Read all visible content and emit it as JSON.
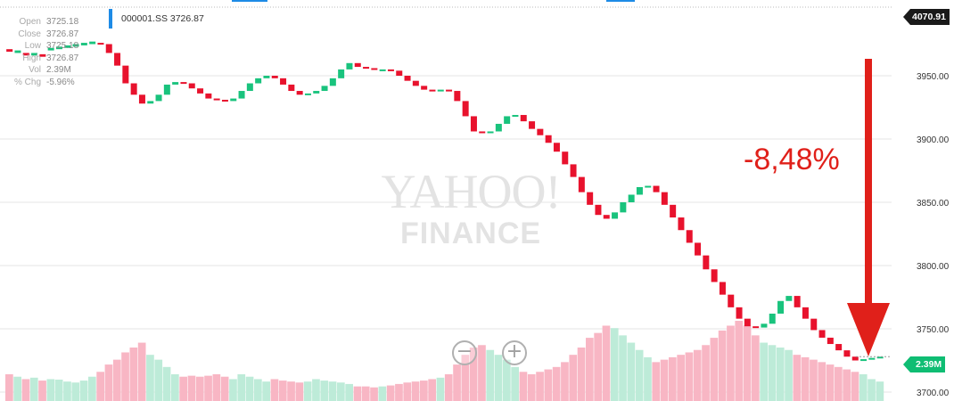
{
  "symbol": {
    "label": "000001.SS 3726.87"
  },
  "ohlc": [
    {
      "key": "Open",
      "value": "3725.18"
    },
    {
      "key": "Close",
      "value": "3726.87"
    },
    {
      "key": "Low",
      "value": "3725.18"
    },
    {
      "key": "High",
      "value": "3726.87"
    },
    {
      "key": "Vol",
      "value": "2.39M"
    },
    {
      "key": "% Chg",
      "value": "-5.96%"
    }
  ],
  "last_price_tag": "4070.91",
  "volume_tag": "2.39M",
  "annotation": "-8,48%",
  "watermark": {
    "brand": "YAHOO!",
    "sub": "FINANCE"
  },
  "zoom": {
    "out_icon": "minus-circle-icon",
    "in_icon": "plus-circle-icon",
    "out_glyph": "−",
    "in_glyph": "+"
  },
  "colors": {
    "up": "#19c37d",
    "down": "#e8122d",
    "vol_up": "#bdebd8",
    "vol_down": "#f8b6c4",
    "arrow": "#e0201a",
    "grid": "#e6e6e6",
    "accent": "#1e8be6"
  },
  "chart_data": {
    "type": "candlestick",
    "ylim": [
      3700,
      4000
    ],
    "yticks": [
      3700,
      3750,
      3800,
      3850,
      3900,
      3950
    ],
    "ytick_labels": [
      "3700.00",
      "3750.00",
      "3800.00",
      "3850.00",
      "3900.00",
      "3950.00"
    ],
    "grid": true,
    "candles": [
      {
        "o": 3971,
        "c": 3969,
        "v": 0.55
      },
      {
        "o": 3968,
        "c": 3970,
        "v": 0.5
      },
      {
        "o": 3968,
        "c": 3966,
        "v": 0.45
      },
      {
        "o": 3966,
        "c": 3968,
        "v": 0.48
      },
      {
        "o": 3967,
        "c": 3965,
        "v": 0.42
      },
      {
        "o": 3970,
        "c": 3972,
        "v": 0.45
      },
      {
        "o": 3971,
        "c": 3973,
        "v": 0.44
      },
      {
        "o": 3972,
        "c": 3974,
        "v": 0.4
      },
      {
        "o": 3973,
        "c": 3975,
        "v": 0.38
      },
      {
        "o": 3974,
        "c": 3976,
        "v": 0.42
      },
      {
        "o": 3975,
        "c": 3977,
        "v": 0.5
      },
      {
        "o": 3976,
        "c": 3975,
        "v": 0.6
      },
      {
        "o": 3975,
        "c": 3968,
        "v": 0.75
      },
      {
        "o": 3968,
        "c": 3958,
        "v": 0.85
      },
      {
        "o": 3958,
        "c": 3944,
        "v": 1.0
      },
      {
        "o": 3944,
        "c": 3935,
        "v": 1.1
      },
      {
        "o": 3935,
        "c": 3928,
        "v": 1.2
      },
      {
        "o": 3928,
        "c": 3930,
        "v": 0.95
      },
      {
        "o": 3930,
        "c": 3935,
        "v": 0.85
      },
      {
        "o": 3935,
        "c": 3943,
        "v": 0.7
      },
      {
        "o": 3943,
        "c": 3945,
        "v": 0.55
      },
      {
        "o": 3945,
        "c": 3944,
        "v": 0.5
      },
      {
        "o": 3944,
        "c": 3940,
        "v": 0.52
      },
      {
        "o": 3940,
        "c": 3936,
        "v": 0.5
      },
      {
        "o": 3936,
        "c": 3932,
        "v": 0.52
      },
      {
        "o": 3932,
        "c": 3931,
        "v": 0.55
      },
      {
        "o": 3931,
        "c": 3930,
        "v": 0.5
      },
      {
        "o": 3930,
        "c": 3932,
        "v": 0.45
      },
      {
        "o": 3932,
        "c": 3938,
        "v": 0.55
      },
      {
        "o": 3938,
        "c": 3944,
        "v": 0.5
      },
      {
        "o": 3944,
        "c": 3948,
        "v": 0.45
      },
      {
        "o": 3948,
        "c": 3950,
        "v": 0.4
      },
      {
        "o": 3950,
        "c": 3948,
        "v": 0.45
      },
      {
        "o": 3948,
        "c": 3943,
        "v": 0.42
      },
      {
        "o": 3943,
        "c": 3938,
        "v": 0.4
      },
      {
        "o": 3938,
        "c": 3935,
        "v": 0.38
      },
      {
        "o": 3935,
        "c": 3936,
        "v": 0.4
      },
      {
        "o": 3936,
        "c": 3938,
        "v": 0.45
      },
      {
        "o": 3938,
        "c": 3942,
        "v": 0.42
      },
      {
        "o": 3942,
        "c": 3948,
        "v": 0.4
      },
      {
        "o": 3948,
        "c": 3955,
        "v": 0.38
      },
      {
        "o": 3955,
        "c": 3960,
        "v": 0.35
      },
      {
        "o": 3960,
        "c": 3957,
        "v": 0.3
      },
      {
        "o": 3957,
        "c": 3956,
        "v": 0.3
      },
      {
        "o": 3956,
        "c": 3955,
        "v": 0.28
      },
      {
        "o": 3955,
        "c": 3955,
        "v": 0.3
      },
      {
        "o": 3955,
        "c": 3954,
        "v": 0.32
      },
      {
        "o": 3954,
        "c": 3950,
        "v": 0.35
      },
      {
        "o": 3950,
        "c": 3946,
        "v": 0.38
      },
      {
        "o": 3946,
        "c": 3942,
        "v": 0.4
      },
      {
        "o": 3942,
        "c": 3939,
        "v": 0.42
      },
      {
        "o": 3939,
        "c": 3938,
        "v": 0.45
      },
      {
        "o": 3938,
        "c": 3939,
        "v": 0.48
      },
      {
        "o": 3939,
        "c": 3938,
        "v": 0.55
      },
      {
        "o": 3938,
        "c": 3930,
        "v": 0.75
      },
      {
        "o": 3930,
        "c": 3918,
        "v": 0.95
      },
      {
        "o": 3918,
        "c": 3906,
        "v": 1.1
      },
      {
        "o": 3906,
        "c": 3905,
        "v": 1.15
      },
      {
        "o": 3905,
        "c": 3906,
        "v": 1.05
      },
      {
        "o": 3906,
        "c": 3912,
        "v": 0.95
      },
      {
        "o": 3912,
        "c": 3918,
        "v": 0.85
      },
      {
        "o": 3918,
        "c": 3919,
        "v": 0.7
      },
      {
        "o": 3919,
        "c": 3914,
        "v": 0.6
      },
      {
        "o": 3914,
        "c": 3908,
        "v": 0.55
      },
      {
        "o": 3908,
        "c": 3903,
        "v": 0.6
      },
      {
        "o": 3903,
        "c": 3897,
        "v": 0.65
      },
      {
        "o": 3897,
        "c": 3890,
        "v": 0.7
      },
      {
        "o": 3890,
        "c": 3880,
        "v": 0.8
      },
      {
        "o": 3880,
        "c": 3870,
        "v": 0.95
      },
      {
        "o": 3870,
        "c": 3858,
        "v": 1.1
      },
      {
        "o": 3858,
        "c": 3848,
        "v": 1.3
      },
      {
        "o": 3848,
        "c": 3840,
        "v": 1.4
      },
      {
        "o": 3840,
        "c": 3837,
        "v": 1.55
      },
      {
        "o": 3837,
        "c": 3842,
        "v": 1.5
      },
      {
        "o": 3842,
        "c": 3850,
        "v": 1.35
      },
      {
        "o": 3850,
        "c": 3856,
        "v": 1.2
      },
      {
        "o": 3856,
        "c": 3862,
        "v": 1.05
      },
      {
        "o": 3862,
        "c": 3863,
        "v": 0.9
      },
      {
        "o": 3863,
        "c": 3858,
        "v": 0.8
      },
      {
        "o": 3858,
        "c": 3848,
        "v": 0.85
      },
      {
        "o": 3848,
        "c": 3838,
        "v": 0.9
      },
      {
        "o": 3838,
        "c": 3828,
        "v": 0.95
      },
      {
        "o": 3828,
        "c": 3818,
        "v": 1.0
      },
      {
        "o": 3818,
        "c": 3808,
        "v": 1.05
      },
      {
        "o": 3808,
        "c": 3797,
        "v": 1.15
      },
      {
        "o": 3797,
        "c": 3787,
        "v": 1.3
      },
      {
        "o": 3787,
        "c": 3777,
        "v": 1.45
      },
      {
        "o": 3777,
        "c": 3767,
        "v": 1.55
      },
      {
        "o": 3767,
        "c": 3758,
        "v": 1.65
      },
      {
        "o": 3758,
        "c": 3752,
        "v": 1.55
      },
      {
        "o": 3752,
        "c": 3751,
        "v": 1.35
      },
      {
        "o": 3751,
        "c": 3754,
        "v": 1.2
      },
      {
        "o": 3754,
        "c": 3762,
        "v": 1.15
      },
      {
        "o": 3762,
        "c": 3772,
        "v": 1.1
      },
      {
        "o": 3772,
        "c": 3776,
        "v": 1.05
      },
      {
        "o": 3776,
        "c": 3767,
        "v": 0.95
      },
      {
        "o": 3767,
        "c": 3758,
        "v": 0.9
      },
      {
        "o": 3758,
        "c": 3749,
        "v": 0.85
      },
      {
        "o": 3749,
        "c": 3743,
        "v": 0.8
      },
      {
        "o": 3743,
        "c": 3738,
        "v": 0.75
      },
      {
        "o": 3738,
        "c": 3733,
        "v": 0.7
      },
      {
        "o": 3733,
        "c": 3728,
        "v": 0.65
      },
      {
        "o": 3728,
        "c": 3725,
        "v": 0.6
      },
      {
        "o": 3725,
        "c": 3726,
        "v": 0.55
      },
      {
        "o": 3726,
        "c": 3727,
        "v": 0.45
      },
      {
        "o": 3727,
        "c": 3728,
        "v": 0.4
      }
    ]
  }
}
